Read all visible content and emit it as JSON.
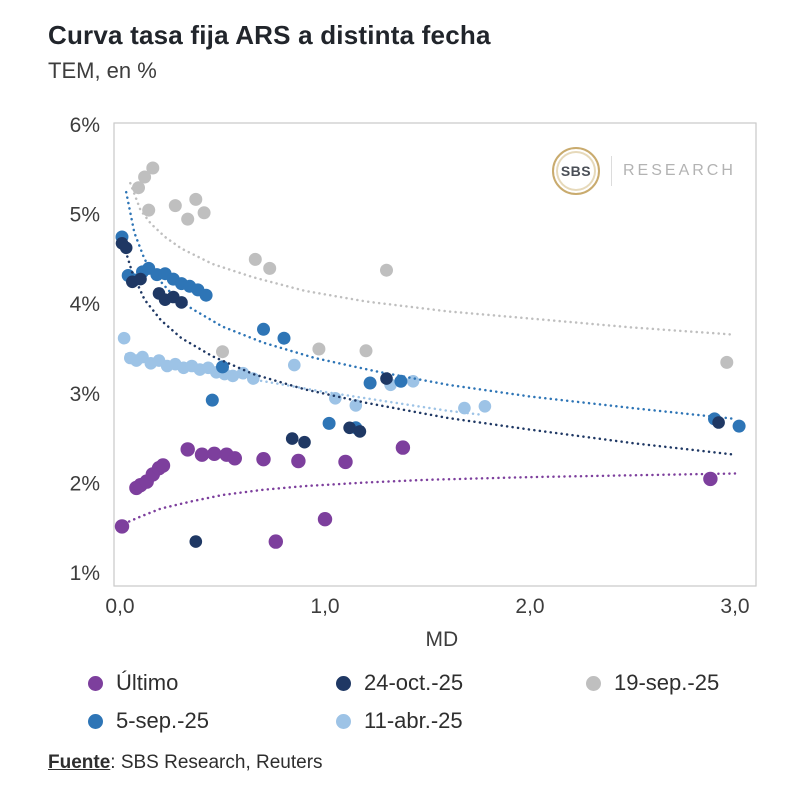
{
  "header": {
    "title": "Curva tasa fija ARS a distinta fecha",
    "subtitle": "TEM, en %"
  },
  "logo": {
    "badge": "SBS",
    "text": "RESEARCH"
  },
  "footer": {
    "source_label": "Fuente",
    "source_text": ": SBS Research, Reuters"
  },
  "chart_data": {
    "type": "scatter",
    "title": "Curva tasa fija ARS a distinta fecha",
    "subtitle": "TEM, en %",
    "xlabel": "MD",
    "ylabel": "TEM, en %",
    "xlim": [
      0,
      3.05
    ],
    "ylim": [
      1,
      6
    ],
    "grid": false,
    "legend_position": "bottom",
    "frame_color": "#c9c9c9",
    "x_ticks": [
      {
        "value": 0,
        "label": "0,0"
      },
      {
        "value": 1,
        "label": "1,0"
      },
      {
        "value": 2,
        "label": "2,0"
      },
      {
        "value": 3,
        "label": "3,0"
      }
    ],
    "y_ticks": [
      {
        "value": 1,
        "label": "1%"
      },
      {
        "value": 2,
        "label": "2%"
      },
      {
        "value": 3,
        "label": "3%"
      },
      {
        "value": 4,
        "label": "4%"
      },
      {
        "value": 5,
        "label": "5%"
      },
      {
        "value": 6,
        "label": "6%"
      }
    ],
    "series": [
      {
        "id": "ultimo",
        "name": "Último",
        "color": "#7d3f9d",
        "points": [
          [
            0.01,
            1.52
          ],
          [
            0.08,
            1.95
          ],
          [
            0.1,
            1.98
          ],
          [
            0.13,
            2.02
          ],
          [
            0.16,
            2.1
          ],
          [
            0.19,
            2.17
          ],
          [
            0.21,
            2.2
          ],
          [
            0.33,
            2.38
          ],
          [
            0.4,
            2.32
          ],
          [
            0.46,
            2.33
          ],
          [
            0.52,
            2.32
          ],
          [
            0.56,
            2.28
          ],
          [
            0.7,
            2.27
          ],
          [
            0.76,
            1.35
          ],
          [
            0.87,
            2.25
          ],
          [
            1.0,
            1.6
          ],
          [
            1.1,
            2.24
          ],
          [
            1.38,
            2.4
          ],
          [
            2.88,
            2.05
          ]
        ],
        "trend": [
          [
            0.02,
            1.55
          ],
          [
            0.1,
            1.63
          ],
          [
            0.2,
            1.72
          ],
          [
            0.35,
            1.8
          ],
          [
            0.5,
            1.87
          ],
          [
            0.7,
            1.93
          ],
          [
            0.9,
            1.97
          ],
          [
            1.2,
            2.01
          ],
          [
            1.5,
            2.04
          ],
          [
            2.0,
            2.07
          ],
          [
            2.5,
            2.09
          ],
          [
            3.0,
            2.11
          ]
        ]
      },
      {
        "id": "oct24",
        "name": "24-oct.-25",
        "color": "#1f3864",
        "points": [
          [
            0.01,
            4.68
          ],
          [
            0.03,
            4.63
          ],
          [
            0.06,
            4.25
          ],
          [
            0.1,
            4.28
          ],
          [
            0.19,
            4.12
          ],
          [
            0.22,
            4.05
          ],
          [
            0.26,
            4.08
          ],
          [
            0.3,
            4.02
          ],
          [
            0.37,
            1.35
          ],
          [
            0.84,
            2.5
          ],
          [
            0.9,
            2.46
          ],
          [
            1.12,
            2.62
          ],
          [
            1.17,
            2.58
          ],
          [
            1.3,
            3.17
          ],
          [
            2.92,
            2.68
          ]
        ],
        "trend": [
          [
            0.02,
            4.65
          ],
          [
            0.06,
            4.35
          ],
          [
            0.12,
            4.05
          ],
          [
            0.2,
            3.82
          ],
          [
            0.3,
            3.62
          ],
          [
            0.45,
            3.42
          ],
          [
            0.65,
            3.22
          ],
          [
            0.9,
            3.05
          ],
          [
            1.2,
            2.9
          ],
          [
            1.6,
            2.73
          ],
          [
            2.0,
            2.6
          ],
          [
            2.5,
            2.45
          ],
          [
            3.0,
            2.32
          ]
        ]
      },
      {
        "id": "sep19",
        "name": "19-sep.-25",
        "color": "#bfbfbf",
        "points": [
          [
            0.09,
            5.3
          ],
          [
            0.12,
            5.42
          ],
          [
            0.16,
            5.52
          ],
          [
            0.14,
            5.05
          ],
          [
            0.27,
            5.1
          ],
          [
            0.33,
            4.95
          ],
          [
            0.37,
            5.17
          ],
          [
            0.41,
            5.02
          ],
          [
            0.5,
            3.47
          ],
          [
            0.66,
            4.5
          ],
          [
            0.73,
            4.4
          ],
          [
            0.97,
            3.5
          ],
          [
            1.2,
            3.48
          ],
          [
            1.3,
            4.38
          ],
          [
            2.96,
            3.35
          ]
        ],
        "trend": [
          [
            0.05,
            5.35
          ],
          [
            0.1,
            5.05
          ],
          [
            0.15,
            4.9
          ],
          [
            0.22,
            4.75
          ],
          [
            0.3,
            4.62
          ],
          [
            0.45,
            4.45
          ],
          [
            0.65,
            4.3
          ],
          [
            0.9,
            4.15
          ],
          [
            1.2,
            4.03
          ],
          [
            1.6,
            3.92
          ],
          [
            2.0,
            3.84
          ],
          [
            2.5,
            3.74
          ],
          [
            3.0,
            3.66
          ]
        ]
      },
      {
        "id": "sep05",
        "name": "5-sep.-25",
        "color": "#2e75b6",
        "points": [
          [
            0.01,
            4.75
          ],
          [
            0.04,
            4.32
          ],
          [
            0.07,
            4.27
          ],
          [
            0.11,
            4.36
          ],
          [
            0.14,
            4.4
          ],
          [
            0.18,
            4.33
          ],
          [
            0.22,
            4.34
          ],
          [
            0.26,
            4.28
          ],
          [
            0.3,
            4.23
          ],
          [
            0.34,
            4.2
          ],
          [
            0.38,
            4.16
          ],
          [
            0.42,
            4.1
          ],
          [
            0.45,
            2.93
          ],
          [
            0.5,
            3.3
          ],
          [
            0.7,
            3.72
          ],
          [
            0.8,
            3.62
          ],
          [
            1.02,
            2.67
          ],
          [
            1.15,
            2.62
          ],
          [
            1.22,
            3.12
          ],
          [
            1.37,
            3.14
          ],
          [
            2.9,
            2.72
          ],
          [
            3.02,
            2.64
          ]
        ],
        "trend": [
          [
            0.03,
            5.25
          ],
          [
            0.07,
            4.8
          ],
          [
            0.12,
            4.5
          ],
          [
            0.18,
            4.3
          ],
          [
            0.25,
            4.12
          ],
          [
            0.35,
            3.95
          ],
          [
            0.5,
            3.75
          ],
          [
            0.7,
            3.57
          ],
          [
            0.95,
            3.4
          ],
          [
            1.25,
            3.25
          ],
          [
            1.6,
            3.1
          ],
          [
            2.0,
            2.97
          ],
          [
            2.5,
            2.84
          ],
          [
            3.0,
            2.72
          ]
        ]
      },
      {
        "id": "abr11",
        "name": "11-abr.-25",
        "color": "#9dc3e6",
        "points": [
          [
            0.02,
            3.62
          ],
          [
            0.05,
            3.4
          ],
          [
            0.08,
            3.37
          ],
          [
            0.11,
            3.41
          ],
          [
            0.15,
            3.34
          ],
          [
            0.19,
            3.37
          ],
          [
            0.23,
            3.31
          ],
          [
            0.27,
            3.33
          ],
          [
            0.31,
            3.29
          ],
          [
            0.35,
            3.31
          ],
          [
            0.39,
            3.27
          ],
          [
            0.43,
            3.29
          ],
          [
            0.47,
            3.24
          ],
          [
            0.51,
            3.22
          ],
          [
            0.55,
            3.2
          ],
          [
            0.6,
            3.23
          ],
          [
            0.65,
            3.17
          ],
          [
            0.85,
            3.32
          ],
          [
            1.05,
            2.95
          ],
          [
            1.15,
            2.87
          ],
          [
            1.32,
            3.1
          ],
          [
            1.43,
            3.14
          ],
          [
            1.68,
            2.84
          ],
          [
            1.78,
            2.86
          ]
        ],
        "trend": [
          [
            0.03,
            3.44
          ],
          [
            0.2,
            3.34
          ],
          [
            0.4,
            3.26
          ],
          [
            0.6,
            3.18
          ],
          [
            0.8,
            3.1
          ],
          [
            1.0,
            3.02
          ],
          [
            1.2,
            2.95
          ],
          [
            1.4,
            2.88
          ],
          [
            1.6,
            2.81
          ],
          [
            1.75,
            2.77
          ]
        ]
      }
    ]
  }
}
